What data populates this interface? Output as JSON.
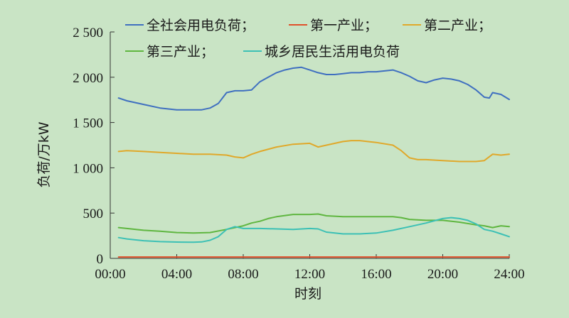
{
  "chart_data": {
    "type": "line",
    "xlabel": "时刻",
    "ylabel": "负荷/万kW",
    "xlim": [
      0.5,
      24
    ],
    "ylim": [
      0,
      2500
    ],
    "x_ticks": [
      0,
      4,
      8,
      12,
      16,
      20,
      24
    ],
    "x_tick_labels": [
      "00:00",
      "04:00",
      "08:00",
      "12:00",
      "16:00",
      "20:00",
      "24:00"
    ],
    "y_ticks": [
      0,
      500,
      1000,
      1500,
      2000,
      2500
    ],
    "y_tick_labels": [
      "0",
      "500",
      "1 000",
      "1 500",
      "2 000",
      "2 500"
    ],
    "grid": false,
    "legend_position": "top",
    "background": "#c9e4c5",
    "series": [
      {
        "name": "全社会用电负荷；",
        "color": "#3f6fc0",
        "x": [
          0.5,
          1,
          2,
          3,
          4,
          5,
          5.5,
          6,
          6.5,
          7,
          7.5,
          8,
          8.5,
          9,
          9.5,
          10,
          10.5,
          11,
          11.5,
          12,
          12.5,
          13,
          13.5,
          14,
          14.5,
          15,
          15.5,
          16,
          16.5,
          17,
          17.5,
          18,
          18.5,
          19,
          19.5,
          20,
          20.5,
          21,
          21.5,
          22,
          22.5,
          22.8,
          23,
          23.5,
          24
        ],
        "values": [
          1770,
          1740,
          1700,
          1660,
          1640,
          1640,
          1640,
          1660,
          1710,
          1830,
          1850,
          1850,
          1860,
          1950,
          2000,
          2050,
          2080,
          2100,
          2110,
          2080,
          2050,
          2030,
          2030,
          2040,
          2050,
          2050,
          2060,
          2060,
          2070,
          2080,
          2050,
          2010,
          1960,
          1940,
          1970,
          1990,
          1980,
          1960,
          1920,
          1860,
          1780,
          1770,
          1830,
          1810,
          1755
        ]
      },
      {
        "name": "第一产业；",
        "color": "#e0502a",
        "x": [
          0.5,
          4,
          8,
          12,
          16,
          20,
          24
        ],
        "values": [
          15,
          15,
          15,
          15,
          15,
          15,
          15
        ]
      },
      {
        "name": "第二产业；",
        "color": "#e0a82a",
        "x": [
          0.5,
          1,
          2,
          3,
          4,
          5,
          6,
          7,
          7.5,
          8,
          8.5,
          9,
          10,
          11,
          12,
          12.5,
          13,
          14,
          14.5,
          15,
          16,
          17,
          17.5,
          18,
          18.5,
          19,
          20,
          21,
          22,
          22.5,
          23,
          23.5,
          24
        ],
        "values": [
          1180,
          1190,
          1180,
          1170,
          1160,
          1150,
          1150,
          1140,
          1120,
          1110,
          1150,
          1180,
          1230,
          1260,
          1270,
          1230,
          1250,
          1290,
          1300,
          1300,
          1280,
          1250,
          1190,
          1110,
          1090,
          1090,
          1080,
          1070,
          1070,
          1080,
          1150,
          1140,
          1150
        ]
      },
      {
        "name": "第三产业；",
        "color": "#5fb640",
        "x": [
          0.5,
          1,
          2,
          3,
          4,
          5,
          6,
          7,
          7.5,
          8,
          8.5,
          9,
          9.5,
          10,
          11,
          12,
          12.5,
          13,
          14,
          15,
          16,
          17,
          17.5,
          18,
          19,
          20,
          21,
          22,
          22.5,
          23,
          23.5,
          24
        ],
        "values": [
          340,
          330,
          310,
          300,
          285,
          280,
          285,
          320,
          340,
          360,
          390,
          410,
          440,
          460,
          485,
          485,
          490,
          470,
          460,
          460,
          460,
          460,
          450,
          430,
          420,
          420,
          400,
          370,
          360,
          340,
          360,
          350
        ]
      },
      {
        "name": "城乡居民生活用电负荷",
        "color": "#3cc0b5",
        "x": [
          0.5,
          1,
          2,
          3,
          4,
          5,
          5.5,
          6,
          6.5,
          7,
          7.5,
          8,
          8.5,
          9,
          10,
          11,
          12,
          12.5,
          13,
          14,
          15,
          16,
          17,
          18,
          19,
          20,
          20.5,
          21,
          21.5,
          22,
          22.5,
          23,
          23.5,
          24
        ],
        "values": [
          230,
          215,
          195,
          185,
          180,
          178,
          182,
          200,
          240,
          320,
          350,
          330,
          330,
          330,
          325,
          320,
          330,
          325,
          290,
          270,
          270,
          280,
          310,
          350,
          390,
          440,
          450,
          440,
          420,
          380,
          320,
          300,
          270,
          240
        ]
      }
    ]
  }
}
